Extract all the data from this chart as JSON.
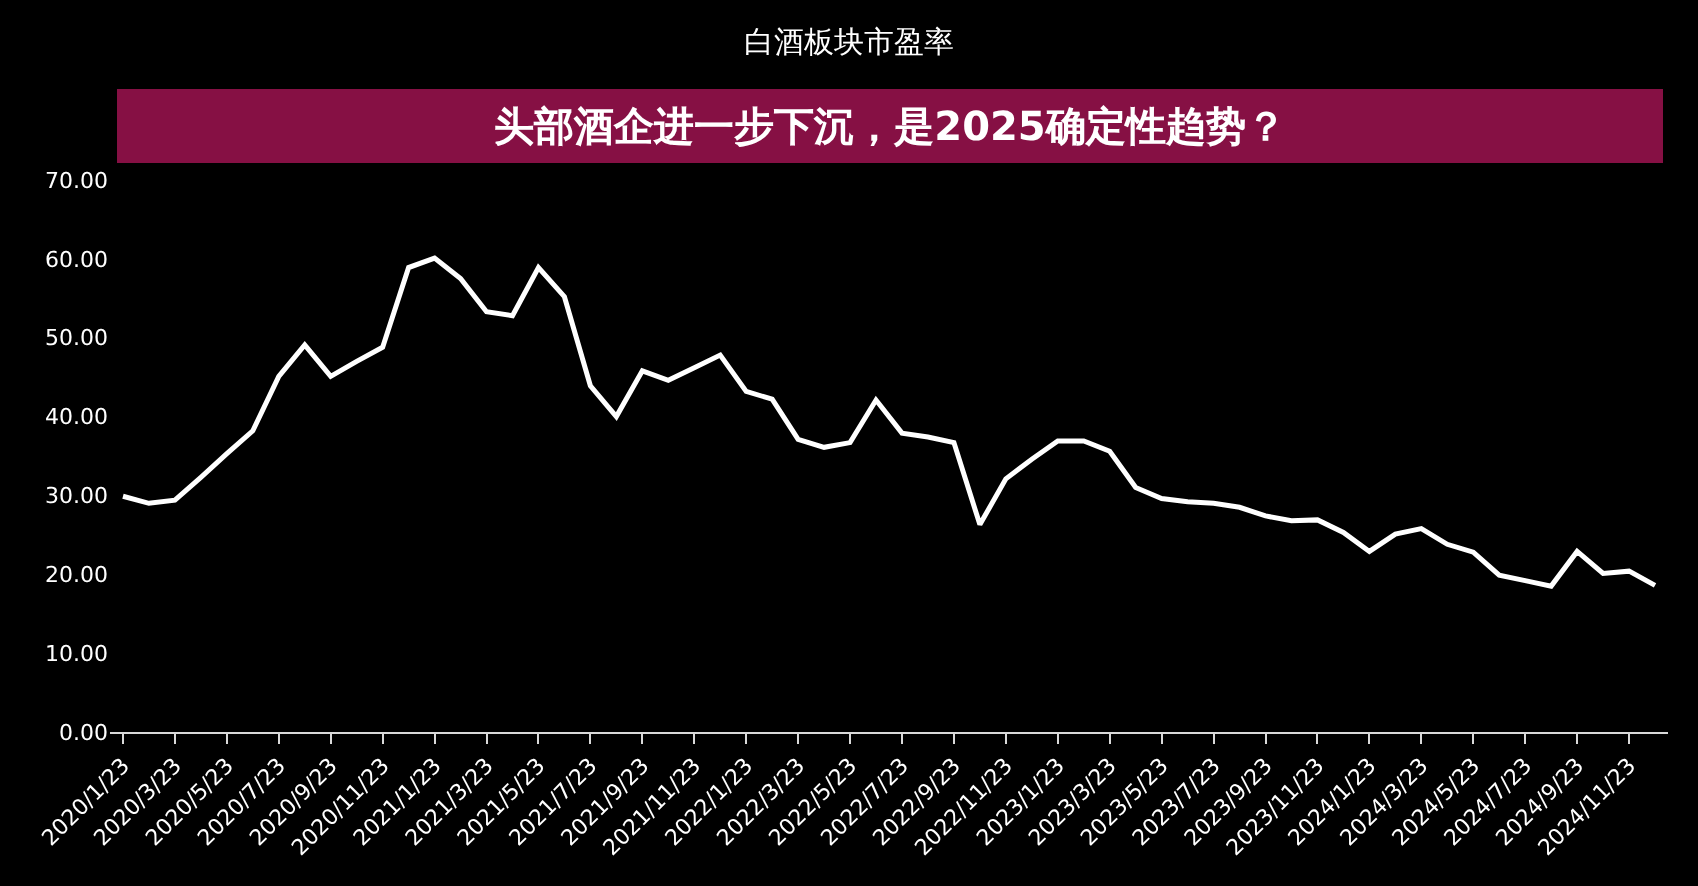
{
  "chart_data": {
    "type": "line",
    "title": "白酒板块市盈率",
    "annotations": [
      "头部酒企进一步下沉，是2025确定性趋势？"
    ],
    "categories": [
      "2020/1/23",
      null,
      "2020/3/23",
      null,
      "2020/5/23",
      null,
      "2020/7/23",
      null,
      "2020/9/23",
      null,
      "2020/11/23",
      null,
      "2021/1/23",
      null,
      "2021/3/23",
      null,
      "2021/5/23",
      null,
      "2021/7/23",
      null,
      "2021/9/23",
      null,
      "2021/11/23",
      null,
      "2022/1/23",
      null,
      "2022/3/23",
      null,
      "2022/5/23",
      null,
      "2022/7/23",
      null,
      "2022/9/23",
      null,
      "2022/11/23",
      null,
      "2023/1/23",
      null,
      "2023/3/23",
      null,
      "2023/5/23",
      null,
      "2023/7/23",
      null,
      "2023/9/23",
      null,
      "2023/11/23",
      null,
      "2024/1/23",
      null,
      "2024/3/23",
      null,
      "2024/5/23",
      null,
      "2024/7/23",
      null,
      "2024/9/23",
      null,
      "2024/11/23",
      null
    ],
    "series": [
      {
        "color": "#ffffff",
        "values": [
          29.9,
          29.0,
          29.4,
          32.3,
          35.3,
          38.2,
          45.1,
          49.1,
          45.1,
          47.0,
          48.8,
          58.9,
          60.1,
          57.5,
          53.3,
          52.8,
          58.9,
          55.2,
          43.9,
          40.0,
          45.8,
          44.6,
          46.2,
          47.8,
          43.2,
          42.2,
          37.1,
          36.1,
          36.7,
          42.1,
          37.9,
          37.4,
          36.7,
          26.3,
          32.1,
          34.6,
          36.9,
          36.9,
          35.6,
          31.0,
          29.6,
          29.2,
          29.0,
          28.5,
          27.4,
          26.8,
          26.9,
          25.3,
          22.9,
          25.1,
          25.8,
          23.8,
          22.8,
          19.9,
          19.2,
          18.5,
          22.9,
          20.1,
          20.4,
          18.6
        ]
      }
    ],
    "ylim": [
      0,
      70
    ],
    "yticks": [
      {
        "value": 0,
        "label": "0.00"
      },
      {
        "value": 10,
        "label": "10.00"
      },
      {
        "value": 20,
        "label": "20.00"
      },
      {
        "value": 30,
        "label": "30.00"
      },
      {
        "value": 40,
        "label": "40.00"
      },
      {
        "value": 50,
        "label": "50.00"
      },
      {
        "value": 60,
        "label": "60.00"
      },
      {
        "value": 70,
        "label": "70.00"
      }
    ],
    "grid": false,
    "marker": "none",
    "line_style": "solid"
  }
}
